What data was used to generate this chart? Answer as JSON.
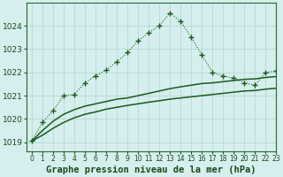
{
  "title": "Graphe pression niveau de la mer (hPa)",
  "bg_color": "#d6eeee",
  "grid_color": "#b0d4d4",
  "line_color": "#1a5c1a",
  "xlim": [
    -0.5,
    23
  ],
  "ylim": [
    1018.6,
    1025.0
  ],
  "yticks": [
    1019,
    1020,
    1021,
    1022,
    1023,
    1024
  ],
  "xticks": [
    0,
    1,
    2,
    3,
    4,
    5,
    6,
    7,
    8,
    9,
    10,
    11,
    12,
    13,
    14,
    15,
    16,
    17,
    18,
    19,
    20,
    21,
    22,
    23
  ],
  "series1_x": [
    0,
    1,
    2,
    3,
    4,
    5,
    6,
    7,
    8,
    9,
    10,
    11,
    12,
    13,
    14,
    15,
    16,
    17,
    18,
    19,
    20,
    21,
    22,
    23
  ],
  "series1_y": [
    1019.05,
    1019.85,
    1020.35,
    1021.0,
    1021.05,
    1021.55,
    1021.85,
    1022.1,
    1022.45,
    1022.85,
    1023.35,
    1023.7,
    1024.0,
    1024.55,
    1024.2,
    1023.5,
    1022.75,
    1022.0,
    1021.85,
    1021.75,
    1021.55,
    1021.45,
    1022.0,
    1022.05
  ],
  "series2_x": [
    0,
    1,
    2,
    3,
    4,
    5,
    6,
    7,
    8,
    9,
    10,
    11,
    12,
    13,
    14,
    15,
    16,
    17,
    18,
    19,
    20,
    21,
    22,
    23
  ],
  "series2_y": [
    1019.05,
    1019.5,
    1019.9,
    1020.2,
    1020.4,
    1020.55,
    1020.65,
    1020.75,
    1020.85,
    1020.9,
    1021.0,
    1021.1,
    1021.2,
    1021.3,
    1021.38,
    1021.45,
    1021.52,
    1021.55,
    1021.6,
    1021.65,
    1021.7,
    1021.72,
    1021.78,
    1021.82
  ],
  "series3_x": [
    0,
    1,
    2,
    3,
    4,
    5,
    6,
    7,
    8,
    9,
    10,
    11,
    12,
    13,
    14,
    15,
    16,
    17,
    18,
    19,
    20,
    21,
    22,
    23
  ],
  "series3_y": [
    1019.05,
    1019.3,
    1019.6,
    1019.85,
    1020.05,
    1020.2,
    1020.3,
    1020.42,
    1020.5,
    1020.58,
    1020.65,
    1020.72,
    1020.78,
    1020.85,
    1020.9,
    1020.95,
    1021.0,
    1021.05,
    1021.1,
    1021.15,
    1021.2,
    1021.22,
    1021.28,
    1021.32
  ],
  "title_fontsize": 7.5,
  "tick_fontsize": 6.5
}
